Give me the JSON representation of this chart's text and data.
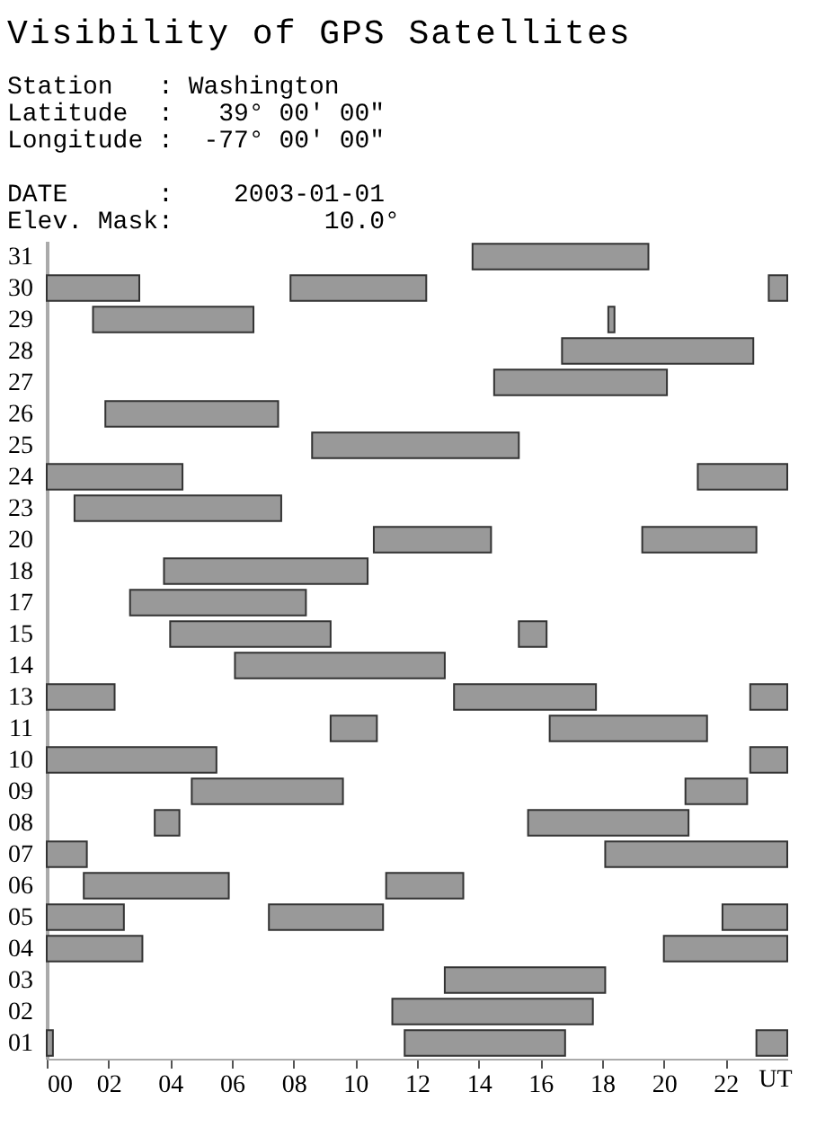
{
  "chart_data": {
    "type": "bar",
    "orientation": "horizontal",
    "title": "Visibility of GPS Satellites",
    "annotations": [
      "Station   : Washington",
      "Latitude  :   39° 00' 00\"",
      "Longitude :  -77° 00' 00\"",
      "DATE      :    2003-01-01",
      "Elev. Mask:          10.0°"
    ],
    "xlabel": "UT",
    "categories": [
      "31",
      "30",
      "29",
      "28",
      "27",
      "26",
      "25",
      "24",
      "23",
      "20",
      "18",
      "17",
      "15",
      "14",
      "13",
      "11",
      "10",
      "09",
      "08",
      "07",
      "06",
      "05",
      "04",
      "03",
      "02",
      "01"
    ],
    "xlim": [
      0,
      24
    ],
    "xticks": [
      {
        "value": 0,
        "label": "00"
      },
      {
        "value": 2,
        "label": "02"
      },
      {
        "value": 4,
        "label": "04"
      },
      {
        "value": 6,
        "label": "06"
      },
      {
        "value": 8,
        "label": "08"
      },
      {
        "value": 10,
        "label": "10"
      },
      {
        "value": 12,
        "label": "12"
      },
      {
        "value": 14,
        "label": "14"
      },
      {
        "value": 16,
        "label": "16"
      },
      {
        "value": 18,
        "label": "18"
      },
      {
        "value": 20,
        "label": "20"
      },
      {
        "value": 22,
        "label": "22"
      }
    ],
    "series": [
      {
        "color": "#999999",
        "base": [
          13.8,
          0,
          1.5,
          16.7,
          14.5,
          1.9,
          8.6,
          0,
          0.9,
          10.6,
          3.8,
          2.7,
          4.0,
          6.1,
          0,
          9.2,
          0,
          4.7,
          3.5,
          0,
          1.2,
          0,
          0,
          12.9,
          11.2,
          0
        ],
        "values": [
          5.7,
          3.0,
          5.2,
          6.2,
          5.6,
          5.6,
          6.7,
          4.4,
          6.7,
          3.8,
          6.6,
          5.7,
          5.2,
          6.8,
          2.2,
          1.5,
          5.5,
          4.9,
          0.8,
          1.3,
          4.7,
          2.5,
          3.1,
          5.2,
          6.5,
          0.2
        ]
      },
      {
        "color": "#999999",
        "base": [
          null,
          7.9,
          18.2,
          null,
          null,
          null,
          null,
          21.1,
          null,
          19.3,
          null,
          null,
          15.3,
          null,
          13.2,
          16.3,
          22.8,
          20.7,
          15.6,
          18.1,
          11.0,
          7.2,
          20.0,
          null,
          null,
          11.6
        ],
        "values": [
          null,
          4.4,
          0.2,
          null,
          null,
          null,
          null,
          2.9,
          null,
          3.7,
          null,
          null,
          0.9,
          null,
          4.6,
          5.1,
          1.2,
          2.0,
          5.2,
          5.9,
          2.5,
          3.7,
          4.0,
          null,
          null,
          5.2
        ]
      },
      {
        "color": "#999999",
        "base": [
          null,
          23.4,
          null,
          null,
          null,
          null,
          null,
          null,
          null,
          null,
          null,
          null,
          null,
          null,
          22.8,
          null,
          null,
          null,
          null,
          null,
          null,
          21.9,
          null,
          null,
          null,
          23.0
        ],
        "values": [
          null,
          0.6,
          null,
          null,
          null,
          null,
          null,
          null,
          null,
          null,
          null,
          null,
          null,
          null,
          1.2,
          null,
          null,
          null,
          null,
          null,
          null,
          2.1,
          null,
          null,
          null,
          1.0
        ]
      }
    ]
  }
}
